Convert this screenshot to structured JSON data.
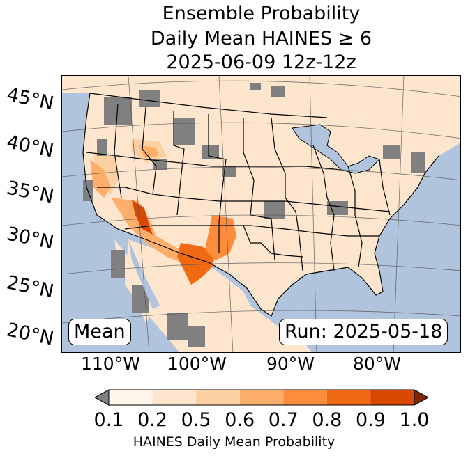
{
  "title": {
    "line1": "Ensemble Probability",
    "line2": "Daily Mean HAINES ≥ 6",
    "line3": "2025-06-09 12z-12z"
  },
  "latitude_labels": [
    "45°N",
    "40°N",
    "35°N",
    "30°N",
    "25°N",
    "20°N"
  ],
  "longitude_labels": [
    "110°W",
    "100°W",
    "90°W",
    "80°W"
  ],
  "mean_badge": "Mean",
  "run_badge": "Run: 2025-05-18",
  "colorbar": {
    "label": "HAINES Daily Mean Probability",
    "ticks": [
      "0.1",
      "0.2",
      "0.5",
      "0.6",
      "0.7",
      "0.8",
      "0.9",
      "1.0"
    ],
    "colors": [
      "#fff5eb",
      "#fee6ce",
      "#fdd0a2",
      "#fdae6b",
      "#fd8d3c",
      "#f16913",
      "#d94801",
      "#a63603"
    ],
    "under_color": "#808080",
    "over_color": "#7f2704"
  },
  "map_colors": {
    "ocean": "#b0c4de",
    "land_low": "#fee6ce",
    "masked": "#808080",
    "lakes": "#b0c4de"
  }
}
